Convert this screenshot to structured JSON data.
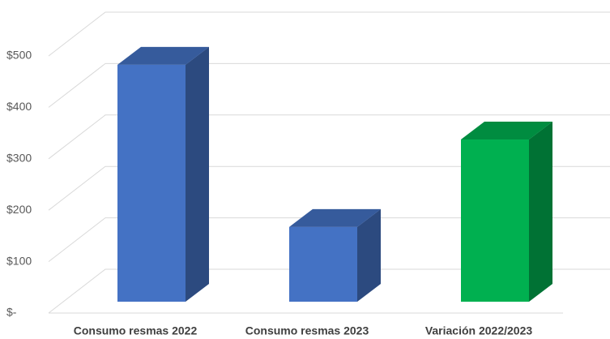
{
  "chart_data": {
    "type": "bar3d",
    "categories": [
      "Consumo resmas 2022",
      "Consumo resmas 2023",
      "Variación 2022/2023"
    ],
    "values": [
      482,
      152,
      330
    ],
    "colors": [
      "#4472c4",
      "#4472c4",
      "#00b050"
    ],
    "ylim": [
      0,
      500
    ],
    "yticks": [
      {
        "value": 0,
        "label": "$-"
      },
      {
        "value": 100,
        "label": "$100"
      },
      {
        "value": 200,
        "label": "$200"
      },
      {
        "value": 300,
        "label": "$300"
      },
      {
        "value": 400,
        "label": "$400"
      },
      {
        "value": 500,
        "label": "$500"
      }
    ],
    "grid": true
  }
}
